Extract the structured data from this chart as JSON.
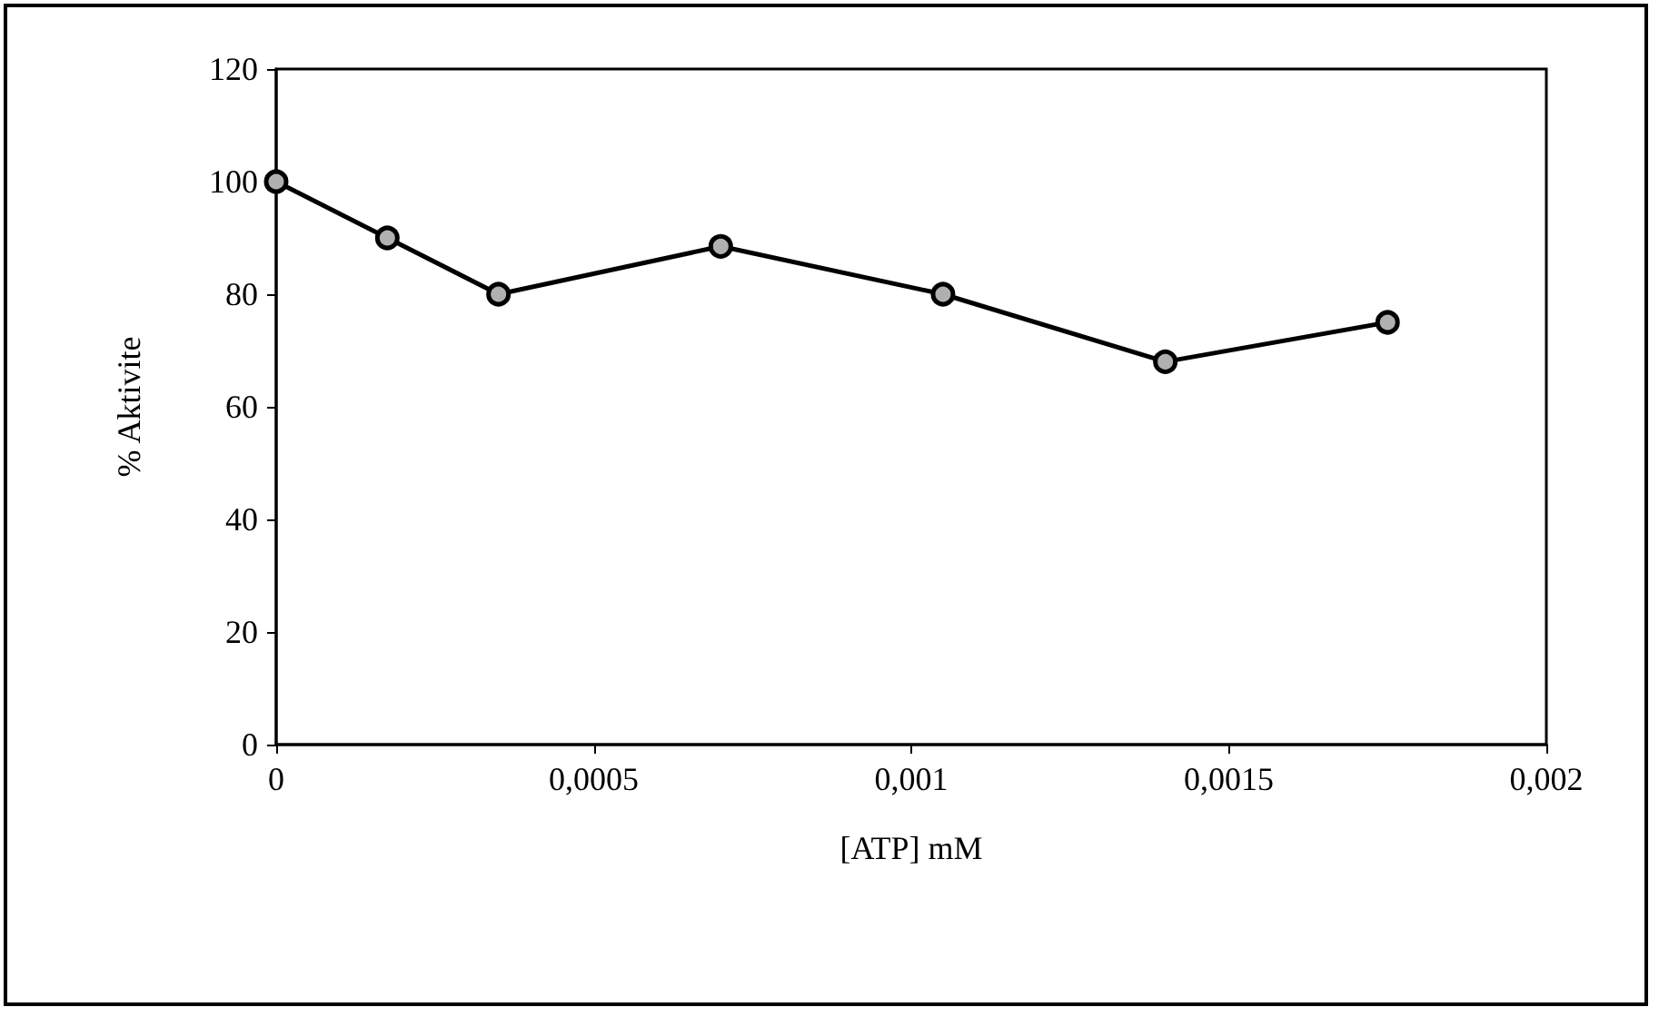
{
  "chart_data": {
    "type": "line",
    "xlabel": "[ATP] mM",
    "ylabel": "% Aktivite",
    "x": [
      0,
      0.000175,
      0.00035,
      0.0007,
      0.00105,
      0.0014,
      0.00175
    ],
    "series": [
      {
        "color": "#000000",
        "values": [
          100,
          90,
          80,
          88.5,
          80,
          68,
          75
        ]
      }
    ],
    "xlim": [
      0,
      0.002
    ],
    "xticks": [
      {
        "value": 0,
        "label": "0"
      },
      {
        "value": 0.0005,
        "label": "0,0005"
      },
      {
        "value": 0.001,
        "label": "0,001"
      },
      {
        "value": 0.0015,
        "label": "0,0015"
      },
      {
        "value": 0.002,
        "label": "0,002"
      }
    ],
    "ylim": [
      0,
      120
    ],
    "yticks": [
      0,
      20,
      40,
      60,
      80,
      100,
      120
    ],
    "grid": false,
    "marker": "circle",
    "line_style": "solid"
  }
}
